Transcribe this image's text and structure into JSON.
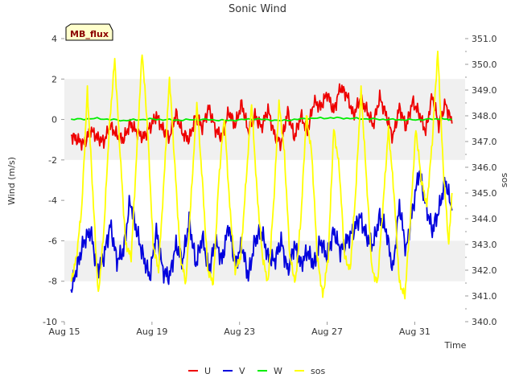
{
  "chart_data": {
    "type": "line",
    "title": "Sonic Wind",
    "xlabel": "Time",
    "ylabel_left": "Wind (m/s)",
    "ylabel_right": "sos",
    "badge": "MB_flux",
    "xlim": [
      15,
      33.3
    ],
    "ylim_left": [
      -10,
      4
    ],
    "ylim_right": [
      340.0,
      351.0
    ],
    "x_ticks": [
      {
        "value": 15,
        "label": "Aug 15"
      },
      {
        "value": 19,
        "label": "Aug 19"
      },
      {
        "value": 23,
        "label": "Aug 23"
      },
      {
        "value": 27,
        "label": "Aug 27"
      },
      {
        "value": 31,
        "label": "Aug 31"
      }
    ],
    "y_ticks_left": [
      "4",
      "2",
      "0",
      "-2",
      "-4",
      "-6",
      "-8",
      "-10"
    ],
    "y_ticks_left_values": [
      4,
      2,
      0,
      -2,
      -4,
      -6,
      -8,
      -10
    ],
    "y_ticks_right": [
      "351.0",
      "350.0",
      "349.0",
      "348.0",
      "347.0",
      "346.0",
      "345.0",
      "344.0",
      "343.0",
      "342.0",
      "341.0",
      "340.0"
    ],
    "y_ticks_right_values": [
      351,
      350,
      349,
      348,
      347,
      346,
      345,
      344,
      343,
      342,
      341,
      340
    ],
    "bands": [
      [
        -2,
        2
      ],
      [
        -8,
        -6
      ]
    ],
    "series": [
      {
        "name": "U",
        "color": "#ee0000",
        "axis": "left",
        "x": [
          15.3,
          15.6,
          15.9,
          16.2,
          16.5,
          16.8,
          17.1,
          17.4,
          17.7,
          18.0,
          18.3,
          18.6,
          18.9,
          19.2,
          19.5,
          19.8,
          20.1,
          20.4,
          20.7,
          21.0,
          21.3,
          21.6,
          21.9,
          22.2,
          22.5,
          22.8,
          23.1,
          23.4,
          23.7,
          24.0,
          24.3,
          24.6,
          24.9,
          25.2,
          25.5,
          25.8,
          26.1,
          26.4,
          26.7,
          27.0,
          27.3,
          27.6,
          27.9,
          28.2,
          28.5,
          28.8,
          29.1,
          29.4,
          29.7,
          30.0,
          30.3,
          30.6,
          30.9,
          31.2,
          31.5,
          31.8,
          32.1,
          32.4,
          32.7
        ],
        "values": [
          -0.8,
          -1.0,
          -1.2,
          -0.5,
          -0.9,
          -1.1,
          -0.3,
          -0.8,
          -1.0,
          -0.2,
          -0.6,
          -0.9,
          -0.4,
          0.2,
          -0.5,
          -0.9,
          0.3,
          -0.7,
          -1.0,
          0.2,
          -0.4,
          0.6,
          -0.5,
          -0.9,
          0.4,
          -0.3,
          0.8,
          -0.6,
          0.2,
          -0.4,
          0.5,
          -0.8,
          -1.2,
          0.4,
          -0.9,
          0.2,
          -0.6,
          0.9,
          0.6,
          1.3,
          0.4,
          1.6,
          1.2,
          0.2,
          1.0,
          0.5,
          -0.3,
          1.1,
          0.2,
          -0.9,
          0.6,
          -0.4,
          0.9,
          0.3,
          -0.6,
          1.2,
          -0.3,
          0.8,
          -0.2
        ]
      },
      {
        "name": "V",
        "color": "#0000dd",
        "axis": "left",
        "x": [
          15.3,
          15.6,
          15.9,
          16.2,
          16.5,
          16.8,
          17.1,
          17.4,
          17.7,
          18.0,
          18.3,
          18.6,
          18.9,
          19.2,
          19.5,
          19.8,
          20.1,
          20.4,
          20.7,
          21.0,
          21.3,
          21.6,
          21.9,
          22.2,
          22.5,
          22.8,
          23.1,
          23.4,
          23.7,
          24.0,
          24.3,
          24.6,
          24.9,
          25.2,
          25.5,
          25.8,
          26.1,
          26.4,
          26.7,
          27.0,
          27.3,
          27.6,
          27.9,
          28.2,
          28.5,
          28.8,
          29.1,
          29.4,
          29.7,
          30.0,
          30.3,
          30.6,
          30.9,
          31.2,
          31.5,
          31.8,
          32.1,
          32.4,
          32.7
        ],
        "values": [
          -8.5,
          -7.2,
          -6.0,
          -5.5,
          -7.5,
          -6.8,
          -5.2,
          -7.0,
          -6.5,
          -4.0,
          -5.5,
          -6.8,
          -7.8,
          -5.5,
          -7.5,
          -7.8,
          -6.2,
          -7.0,
          -5.0,
          -7.2,
          -5.8,
          -7.5,
          -6.0,
          -7.0,
          -5.2,
          -7.2,
          -6.2,
          -7.8,
          -6.0,
          -5.5,
          -6.8,
          -7.0,
          -6.0,
          -7.5,
          -6.2,
          -7.2,
          -6.5,
          -7.2,
          -6.0,
          -6.8,
          -5.5,
          -6.5,
          -6.0,
          -5.5,
          -4.8,
          -5.8,
          -6.2,
          -4.8,
          -5.5,
          -7.5,
          -4.2,
          -6.5,
          -4.5,
          -2.5,
          -4.2,
          -5.5,
          -4.5,
          -3.0,
          -4.5
        ]
      },
      {
        "name": "W",
        "color": "#00ee00",
        "axis": "left",
        "x": [
          15.3,
          16.5,
          17.7,
          18.9,
          20.1,
          21.3,
          22.5,
          23.7,
          24.9,
          26.1,
          27.3,
          28.5,
          29.7,
          30.9,
          32.1,
          32.7
        ],
        "values": [
          0.0,
          0.05,
          -0.05,
          0.02,
          -0.03,
          0.0,
          -0.05,
          0.03,
          -0.06,
          0.05,
          0.08,
          0.04,
          0.0,
          -0.02,
          0.03,
          0.0
        ]
      },
      {
        "name": "sos",
        "color": "#ffff00",
        "axis": "right",
        "x": [
          15.3,
          15.55,
          15.8,
          16.05,
          16.3,
          16.55,
          16.8,
          17.05,
          17.3,
          17.55,
          17.8,
          18.05,
          18.3,
          18.55,
          18.8,
          19.05,
          19.3,
          19.55,
          19.8,
          20.05,
          20.3,
          20.55,
          20.8,
          21.05,
          21.3,
          21.55,
          21.8,
          22.05,
          22.3,
          22.55,
          22.8,
          23.05,
          23.3,
          23.55,
          23.8,
          24.05,
          24.3,
          24.55,
          24.8,
          25.05,
          25.3,
          25.55,
          25.8,
          26.05,
          26.3,
          26.55,
          26.8,
          27.05,
          27.3,
          27.55,
          27.8,
          28.05,
          28.3,
          28.55,
          28.8,
          29.05,
          29.3,
          29.55,
          29.8,
          30.05,
          30.3,
          30.55,
          30.8,
          31.05,
          31.3,
          31.55,
          31.8,
          32.05,
          32.3,
          32.55,
          32.7
        ],
        "values": [
          341.5,
          342.5,
          344.5,
          349.0,
          345.0,
          341.0,
          343.5,
          347.5,
          350.2,
          346.5,
          343.0,
          342.5,
          346.5,
          350.5,
          347.5,
          343.0,
          342.0,
          345.5,
          349.5,
          346.0,
          342.5,
          341.5,
          345.0,
          348.5,
          345.5,
          342.0,
          341.5,
          345.5,
          348.0,
          344.5,
          342.0,
          342.5,
          345.5,
          348.5,
          345.0,
          342.5,
          341.5,
          344.5,
          348.5,
          346.5,
          342.5,
          341.5,
          344.0,
          348.0,
          346.5,
          342.5,
          341.0,
          342.5,
          347.5,
          346.0,
          342.5,
          342.0,
          345.0,
          349.0,
          345.5,
          342.0,
          341.5,
          344.5,
          347.5,
          345.0,
          341.5,
          341.0,
          344.0,
          347.5,
          345.5,
          344.5,
          347.0,
          350.5,
          346.0,
          343.0,
          345.0
        ]
      }
    ]
  }
}
